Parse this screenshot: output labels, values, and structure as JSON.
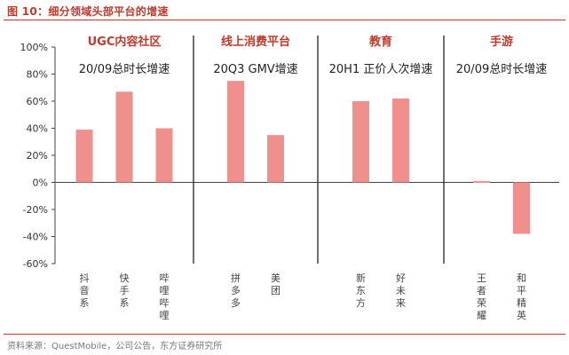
{
  "figure_title": "图 10：细分领域头部平台的增速",
  "source": "资料来源：QuestMobile，公司公告，东方证券研究所",
  "colors": {
    "bar": "#f0908c",
    "accent": "#c0392b",
    "axis": "#444444",
    "divider": "#222222"
  },
  "chart_data": {
    "type": "bar",
    "ylim": [
      -60,
      100
    ],
    "yticks": [
      -60,
      -40,
      -20,
      0,
      20,
      40,
      60,
      80,
      100
    ],
    "ytick_labels": [
      "-60%",
      "-40%",
      "-20%",
      "0%",
      "20%",
      "40%",
      "60%",
      "80%",
      "100%"
    ],
    "grid": false,
    "legend": "none",
    "groups": [
      {
        "title": "UGC内容社区",
        "subtitle": "20/09总时长增速",
        "categories": [
          "抖音系",
          "快手系",
          "哔哩哔哩"
        ],
        "values": [
          39,
          67,
          40
        ]
      },
      {
        "title": "线上消费平台",
        "subtitle": "20Q3 GMV增速",
        "categories": [
          "拼多多",
          "美团"
        ],
        "values": [
          75,
          35
        ]
      },
      {
        "title": "教育",
        "subtitle": "20H1 正价人次增速",
        "categories": [
          "新东方",
          "好未来"
        ],
        "values": [
          60,
          62
        ]
      },
      {
        "title": "手游",
        "subtitle": "20/09总时长增速",
        "categories": [
          "王者荣耀",
          "和平精英"
        ],
        "values": [
          1,
          -38
        ]
      }
    ]
  }
}
